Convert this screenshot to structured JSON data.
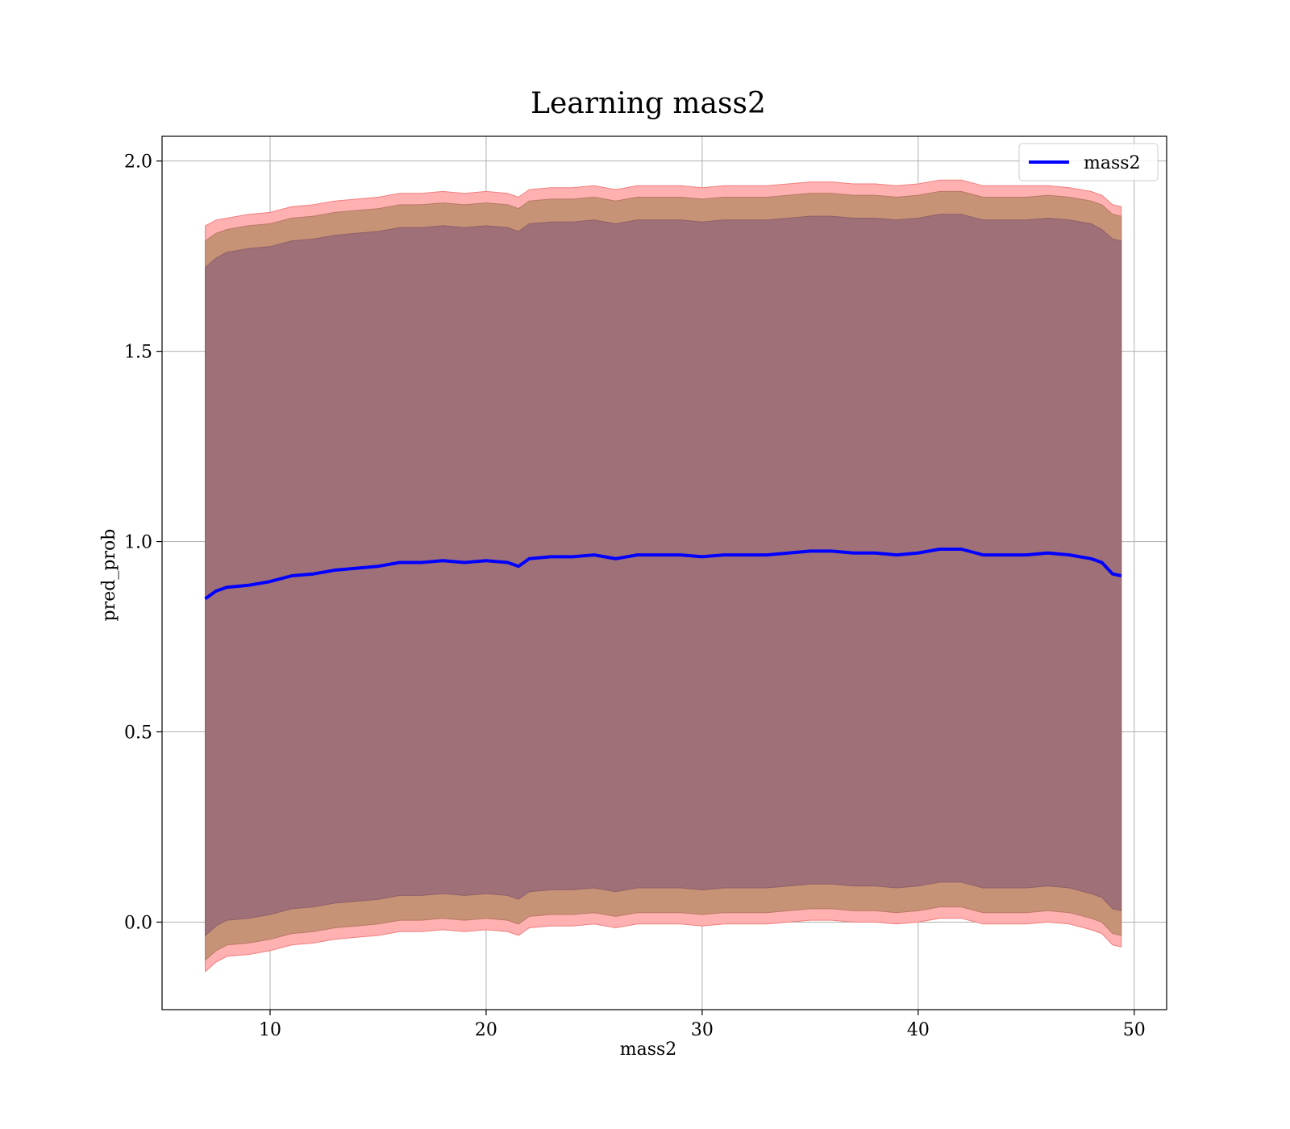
{
  "chart_data": {
    "type": "line",
    "title": "Learning mass2",
    "xlabel": "mass2",
    "ylabel": "pred_prob",
    "xlim": [
      5,
      51.5
    ],
    "ylim": [
      -0.23,
      2.065
    ],
    "xticks": [
      10,
      20,
      30,
      40,
      50
    ],
    "yticks": [
      0.0,
      0.5,
      1.0,
      1.5,
      2.0
    ],
    "xtick_labels": [
      "10",
      "20",
      "30",
      "40",
      "50"
    ],
    "ytick_labels": [
      "0.0",
      "0.5",
      "1.0",
      "1.5",
      "2.0"
    ],
    "grid": true,
    "legend": {
      "location": "upper right",
      "entries": [
        "mass2"
      ]
    },
    "colors": {
      "line": "#0000ff",
      "band_outer": "#ffb0b0",
      "band_outer_edge": "#f08080",
      "band_middle": "#c79377",
      "band_inner": "#a07078",
      "grid": "#b0b0b0"
    },
    "x": [
      7.0,
      7.5,
      8.0,
      9.0,
      10.0,
      11.0,
      12.0,
      13.0,
      14.0,
      15.0,
      16.0,
      17.0,
      18.0,
      19.0,
      20.0,
      21.0,
      21.5,
      22.0,
      23.0,
      24.0,
      25.0,
      26.0,
      27.0,
      28.0,
      29.0,
      30.0,
      31.0,
      32.0,
      33.0,
      34.0,
      35.0,
      36.0,
      37.0,
      38.0,
      39.0,
      40.0,
      41.0,
      42.0,
      43.0,
      44.0,
      45.0,
      46.0,
      47.0,
      48.0,
      48.5,
      49.0,
      49.4
    ],
    "series": [
      {
        "name": "mass2",
        "role": "line",
        "values": [
          0.85,
          0.87,
          0.88,
          0.885,
          0.895,
          0.91,
          0.915,
          0.925,
          0.93,
          0.935,
          0.945,
          0.945,
          0.95,
          0.945,
          0.95,
          0.945,
          0.935,
          0.955,
          0.96,
          0.96,
          0.965,
          0.955,
          0.965,
          0.965,
          0.965,
          0.96,
          0.965,
          0.965,
          0.965,
          0.97,
          0.975,
          0.975,
          0.97,
          0.97,
          0.965,
          0.97,
          0.98,
          0.98,
          0.965,
          0.965,
          0.965,
          0.97,
          0.965,
          0.955,
          0.945,
          0.915,
          0.91
        ]
      },
      {
        "name": "",
        "role": "band_outer",
        "upper": [
          1.83,
          1.845,
          1.85,
          1.86,
          1.865,
          1.88,
          1.885,
          1.895,
          1.9,
          1.905,
          1.915,
          1.915,
          1.92,
          1.915,
          1.92,
          1.915,
          1.905,
          1.925,
          1.93,
          1.93,
          1.935,
          1.925,
          1.935,
          1.935,
          1.935,
          1.93,
          1.935,
          1.935,
          1.935,
          1.94,
          1.945,
          1.945,
          1.94,
          1.94,
          1.935,
          1.94,
          1.95,
          1.95,
          1.935,
          1.935,
          1.935,
          1.935,
          1.93,
          1.92,
          1.91,
          1.885,
          1.88
        ],
        "lower": [
          -0.13,
          -0.105,
          -0.09,
          -0.085,
          -0.075,
          -0.06,
          -0.055,
          -0.045,
          -0.04,
          -0.035,
          -0.025,
          -0.025,
          -0.02,
          -0.025,
          -0.02,
          -0.025,
          -0.035,
          -0.015,
          -0.01,
          -0.01,
          -0.005,
          -0.015,
          -0.005,
          -0.005,
          -0.005,
          -0.01,
          -0.005,
          -0.005,
          -0.005,
          0.0,
          0.005,
          0.005,
          0.0,
          0.0,
          -0.005,
          0.0,
          0.01,
          0.01,
          -0.005,
          -0.005,
          -0.005,
          0.0,
          -0.005,
          -0.02,
          -0.03,
          -0.06,
          -0.065
        ]
      },
      {
        "name": "",
        "role": "band_middle",
        "upper": [
          1.79,
          1.81,
          1.82,
          1.83,
          1.835,
          1.85,
          1.855,
          1.865,
          1.87,
          1.875,
          1.885,
          1.885,
          1.89,
          1.885,
          1.89,
          1.885,
          1.875,
          1.895,
          1.9,
          1.9,
          1.905,
          1.895,
          1.905,
          1.905,
          1.905,
          1.9,
          1.905,
          1.905,
          1.905,
          1.91,
          1.915,
          1.915,
          1.91,
          1.91,
          1.905,
          1.91,
          1.92,
          1.92,
          1.905,
          1.905,
          1.905,
          1.91,
          1.905,
          1.895,
          1.885,
          1.86,
          1.855
        ],
        "lower": [
          -0.1,
          -0.075,
          -0.06,
          -0.055,
          -0.045,
          -0.03,
          -0.025,
          -0.015,
          -0.01,
          -0.005,
          0.005,
          0.005,
          0.01,
          0.005,
          0.01,
          0.005,
          -0.005,
          0.015,
          0.02,
          0.02,
          0.025,
          0.015,
          0.025,
          0.025,
          0.025,
          0.02,
          0.025,
          0.025,
          0.025,
          0.03,
          0.035,
          0.035,
          0.03,
          0.03,
          0.025,
          0.03,
          0.04,
          0.04,
          0.025,
          0.025,
          0.025,
          0.03,
          0.025,
          0.01,
          0.0,
          -0.03,
          -0.035
        ]
      },
      {
        "name": "",
        "role": "band_inner",
        "upper": [
          1.72,
          1.745,
          1.76,
          1.77,
          1.775,
          1.79,
          1.795,
          1.805,
          1.81,
          1.815,
          1.825,
          1.825,
          1.83,
          1.825,
          1.83,
          1.825,
          1.815,
          1.835,
          1.84,
          1.84,
          1.845,
          1.835,
          1.845,
          1.845,
          1.845,
          1.84,
          1.845,
          1.845,
          1.845,
          1.85,
          1.855,
          1.855,
          1.85,
          1.85,
          1.845,
          1.85,
          1.86,
          1.86,
          1.845,
          1.845,
          1.845,
          1.85,
          1.845,
          1.835,
          1.82,
          1.795,
          1.79
        ],
        "lower": [
          -0.035,
          -0.01,
          0.005,
          0.01,
          0.02,
          0.035,
          0.04,
          0.05,
          0.055,
          0.06,
          0.07,
          0.07,
          0.075,
          0.07,
          0.075,
          0.07,
          0.06,
          0.08,
          0.085,
          0.085,
          0.09,
          0.08,
          0.09,
          0.09,
          0.09,
          0.085,
          0.09,
          0.09,
          0.09,
          0.095,
          0.1,
          0.1,
          0.095,
          0.095,
          0.09,
          0.095,
          0.105,
          0.105,
          0.09,
          0.09,
          0.09,
          0.095,
          0.09,
          0.075,
          0.065,
          0.035,
          0.03
        ]
      }
    ]
  }
}
